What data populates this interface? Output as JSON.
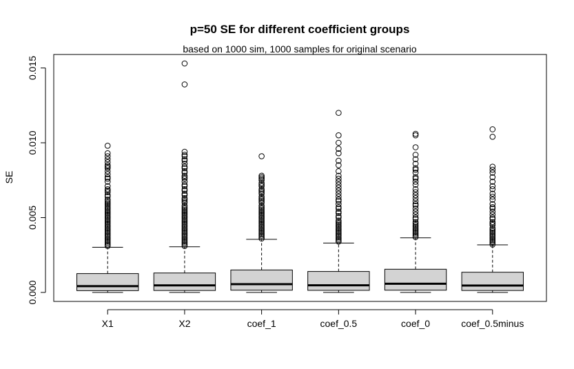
{
  "chart_data": {
    "type": "box",
    "title": "p=50 SE for different coefficient groups",
    "subtitle": "based on 1000 sim, 1000 samples for original scenario",
    "xlabel": "",
    "ylabel": "SE",
    "ylim": [
      -0.0006,
      0.0159
    ],
    "yticks": [
      0.0,
      0.005,
      0.01,
      0.015
    ],
    "ytick_labels": [
      "0.000",
      "0.005",
      "0.010",
      "0.015"
    ],
    "grid": false,
    "categories": [
      "X1",
      "X2",
      "coef_1",
      "coef_0.5",
      "coef_0",
      "coef_0.5minus"
    ],
    "boxes": [
      {
        "whisker_low": 0.0,
        "q1": 0.00012,
        "median": 0.00042,
        "q3": 0.00126,
        "whisker_high": 0.00302,
        "outliers": [
          0.0098,
          0.0093,
          0.0091,
          0.0089,
          0.0087,
          0.0085,
          0.0084,
          0.0083,
          0.0081,
          0.0079,
          0.0077,
          0.0076,
          0.0074,
          0.0071,
          0.0069,
          0.0068,
          0.0067,
          0.0065,
          0.0064,
          0.0062,
          0.0061,
          0.006,
          0.0059,
          0.0058,
          0.0057,
          0.0056,
          0.0055,
          0.0054,
          0.0053,
          0.0052,
          0.0051,
          0.005,
          0.0049,
          0.0048,
          0.0047,
          0.0046,
          0.0045,
          0.0044,
          0.0043,
          0.0042,
          0.0041,
          0.004,
          0.0039,
          0.0038,
          0.0037,
          0.0036,
          0.0035,
          0.0034,
          0.0033,
          0.0032,
          0.0031
        ]
      },
      {
        "whisker_low": 0.0,
        "q1": 0.00013,
        "median": 0.00047,
        "q3": 0.0013,
        "whisker_high": 0.00305,
        "outliers": [
          0.0153,
          0.0139,
          0.0094,
          0.0092,
          0.0091,
          0.0089,
          0.0088,
          0.0086,
          0.0084,
          0.0083,
          0.0081,
          0.008,
          0.0078,
          0.0077,
          0.0076,
          0.0074,
          0.0072,
          0.0071,
          0.0069,
          0.0068,
          0.0066,
          0.0065,
          0.0063,
          0.0062,
          0.0061,
          0.006,
          0.0058,
          0.0057,
          0.0056,
          0.0055,
          0.0054,
          0.0053,
          0.0052,
          0.0051,
          0.005,
          0.0049,
          0.0048,
          0.0047,
          0.0046,
          0.0045,
          0.0044,
          0.0043,
          0.0042,
          0.0041,
          0.004,
          0.0039,
          0.0038,
          0.0037,
          0.0036,
          0.0035,
          0.0034,
          0.0033,
          0.0032,
          0.0031
        ]
      },
      {
        "whisker_low": 0.0,
        "q1": 0.00015,
        "median": 0.00055,
        "q3": 0.0015,
        "whisker_high": 0.00355,
        "outliers": [
          0.0091,
          0.0078,
          0.0077,
          0.0076,
          0.0075,
          0.0073,
          0.0072,
          0.0071,
          0.0069,
          0.0068,
          0.0067,
          0.0066,
          0.0064,
          0.0063,
          0.0062,
          0.0061,
          0.006,
          0.0058,
          0.0057,
          0.0056,
          0.0055,
          0.0054,
          0.0053,
          0.0052,
          0.0051,
          0.005,
          0.0049,
          0.0048,
          0.0047,
          0.0046,
          0.0045,
          0.0044,
          0.0043,
          0.0042,
          0.0041,
          0.004,
          0.0039,
          0.0038,
          0.0037,
          0.0036
        ]
      },
      {
        "whisker_low": 0.0,
        "q1": 0.00014,
        "median": 0.00048,
        "q3": 0.0014,
        "whisker_high": 0.0033,
        "outliers": [
          0.012,
          0.0105,
          0.01,
          0.0096,
          0.0093,
          0.0088,
          0.0085,
          0.0081,
          0.0078,
          0.0076,
          0.0074,
          0.0072,
          0.007,
          0.0068,
          0.0066,
          0.0064,
          0.0062,
          0.0061,
          0.0059,
          0.0057,
          0.0056,
          0.0054,
          0.0053,
          0.0051,
          0.005,
          0.0048,
          0.0047,
          0.0046,
          0.0045,
          0.0044,
          0.0043,
          0.0042,
          0.0041,
          0.004,
          0.0039,
          0.0038,
          0.0037,
          0.0036,
          0.0035,
          0.0034
        ]
      },
      {
        "whisker_low": 0.0,
        "q1": 0.00015,
        "median": 0.00058,
        "q3": 0.00155,
        "whisker_high": 0.00365,
        "outliers": [
          0.0106,
          0.0105,
          0.0097,
          0.0092,
          0.0089,
          0.0086,
          0.0083,
          0.0082,
          0.008,
          0.0077,
          0.0076,
          0.0074,
          0.0072,
          0.0069,
          0.0067,
          0.0065,
          0.0063,
          0.0061,
          0.0059,
          0.0058,
          0.0056,
          0.0054,
          0.0052,
          0.005,
          0.0049,
          0.0047,
          0.0046,
          0.0045,
          0.0044,
          0.0043,
          0.0042,
          0.0041,
          0.004,
          0.0039,
          0.0038,
          0.0037
        ]
      },
      {
        "whisker_low": 0.0,
        "q1": 0.00013,
        "median": 0.00046,
        "q3": 0.00135,
        "whisker_high": 0.00318,
        "outliers": [
          0.0109,
          0.0104,
          0.0084,
          0.0082,
          0.008,
          0.0077,
          0.0074,
          0.0071,
          0.0069,
          0.0066,
          0.0064,
          0.0062,
          0.0059,
          0.0057,
          0.0056,
          0.0054,
          0.0052,
          0.005,
          0.0049,
          0.0047,
          0.0046,
          0.0045,
          0.0043,
          0.0042,
          0.0041,
          0.004,
          0.0039,
          0.0038,
          0.0037,
          0.0036,
          0.0035,
          0.0034,
          0.0033,
          0.0032
        ]
      }
    ],
    "colors": {
      "box_fill": "#d3d3d3",
      "stroke": "#000000",
      "background": "#ffffff"
    }
  }
}
